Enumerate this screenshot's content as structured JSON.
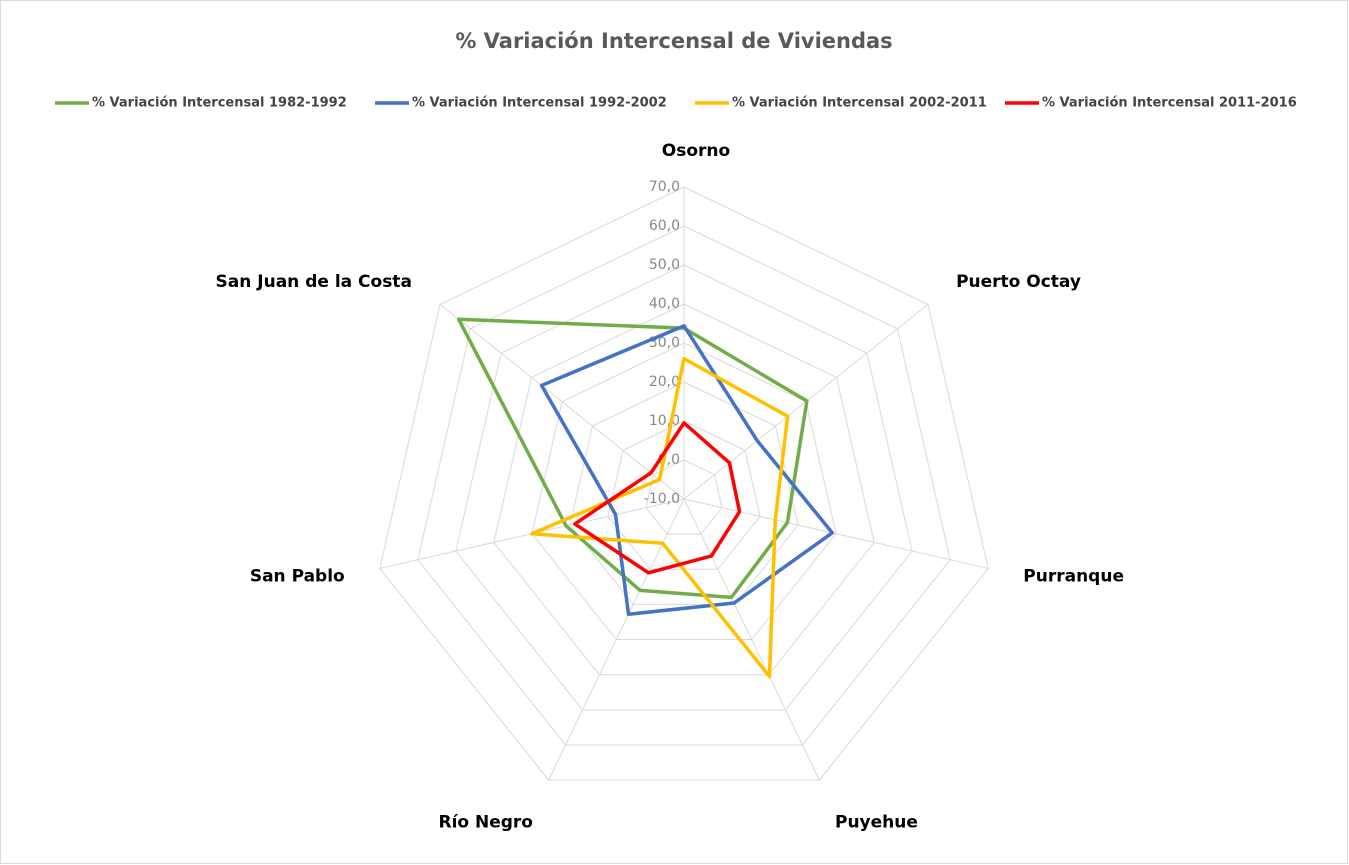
{
  "chart_data": {
    "type": "radar",
    "title": "% Variación Intercensal de Viviendas",
    "categories": [
      "Osorno",
      "Puerto Octay",
      "Purranque",
      "Puyehue",
      "Río Negro",
      "San Pablo",
      "San Juan de la Costa"
    ],
    "ylim": [
      -10,
      70
    ],
    "yticks": [
      {
        "value": -10,
        "label": "-10,0"
      },
      {
        "value": 0,
        "label": "0,0"
      },
      {
        "value": 10,
        "label": "10,0"
      },
      {
        "value": 20,
        "label": "20,0"
      },
      {
        "value": 30,
        "label": "30,0"
      },
      {
        "value": 40,
        "label": "40,0"
      },
      {
        "value": 50,
        "label": "50,0"
      },
      {
        "value": 60,
        "label": "60,0"
      },
      {
        "value": 70,
        "label": "70,0"
      }
    ],
    "grid": true,
    "legend": "top",
    "series": [
      {
        "name": "% Variación Intercensal 1982-1992",
        "color": "#70ad47",
        "values": [
          33.8,
          30.3,
          17.2,
          18,
          16,
          21,
          63.9
        ]
      },
      {
        "name": "% Variación Intercensal 1992-2002",
        "color": "#4472c4",
        "values": [
          34.4,
          14,
          29,
          19.6,
          22.8,
          8,
          36.7
        ]
      },
      {
        "name": "% Variación Intercensal 2002-2011",
        "color": "#ffc000",
        "values": [
          26,
          24,
          14,
          40.5,
          2.6,
          30,
          -2
        ]
      },
      {
        "name": "% Variación Intercensal 2011-2016",
        "color": "#ff0000",
        "values": [
          9.5,
          4.9,
          4.6,
          6.2,
          11,
          18.7,
          0.8
        ]
      }
    ]
  }
}
